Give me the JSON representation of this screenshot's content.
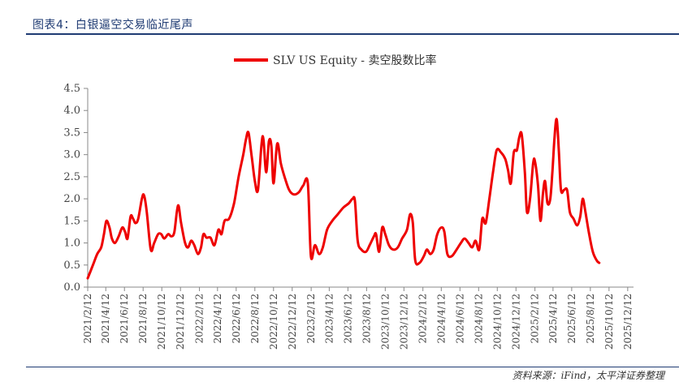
{
  "header": {
    "caption": "图表4：白银逼空交易临近尾声"
  },
  "footer": {
    "source": "资料来源：iFind，太平洋证券整理"
  },
  "chart_data": {
    "type": "line",
    "series": [
      {
        "name": "SLV US Equity - 卖空股数比率",
        "color": "#ee0000",
        "points": [
          [
            "2021-02-12",
            0.2
          ],
          [
            "2021-03-01",
            0.5
          ],
          [
            "2021-03-15",
            0.75
          ],
          [
            "2021-03-28",
            0.9
          ],
          [
            "2021-04-06",
            1.2
          ],
          [
            "2021-04-14",
            1.5
          ],
          [
            "2021-04-24",
            1.35
          ],
          [
            "2021-05-02",
            1.1
          ],
          [
            "2021-05-12",
            1.0
          ],
          [
            "2021-05-24",
            1.15
          ],
          [
            "2021-06-05",
            1.35
          ],
          [
            "2021-06-14",
            1.25
          ],
          [
            "2021-06-22",
            1.1
          ],
          [
            "2021-07-02",
            1.6
          ],
          [
            "2021-07-10",
            1.55
          ],
          [
            "2021-07-18",
            1.45
          ],
          [
            "2021-07-27",
            1.55
          ],
          [
            "2021-08-08",
            2.0
          ],
          [
            "2021-08-15",
            2.08
          ],
          [
            "2021-08-24",
            1.7
          ],
          [
            "2021-09-06",
            0.85
          ],
          [
            "2021-09-17",
            1.0
          ],
          [
            "2021-09-30",
            1.2
          ],
          [
            "2021-10-10",
            1.2
          ],
          [
            "2021-10-20",
            1.1
          ],
          [
            "2021-11-02",
            1.2
          ],
          [
            "2021-11-12",
            1.15
          ],
          [
            "2021-11-22",
            1.25
          ],
          [
            "2021-12-04",
            1.85
          ],
          [
            "2021-12-14",
            1.45
          ],
          [
            "2021-12-27",
            1.0
          ],
          [
            "2022-01-06",
            0.9
          ],
          [
            "2022-01-16",
            1.05
          ],
          [
            "2022-01-26",
            0.95
          ],
          [
            "2022-02-07",
            0.75
          ],
          [
            "2022-02-17",
            0.9
          ],
          [
            "2022-02-25",
            1.2
          ],
          [
            "2022-03-07",
            1.12
          ],
          [
            "2022-03-20",
            1.12
          ],
          [
            "2022-04-02",
            0.95
          ],
          [
            "2022-04-15",
            1.3
          ],
          [
            "2022-04-25",
            1.2
          ],
          [
            "2022-05-05",
            1.5
          ],
          [
            "2022-05-20",
            1.55
          ],
          [
            "2022-06-05",
            1.9
          ],
          [
            "2022-06-20",
            2.5
          ],
          [
            "2022-07-05",
            3.0
          ],
          [
            "2022-07-14",
            3.35
          ],
          [
            "2022-07-22",
            3.5
          ],
          [
            "2022-08-01",
            3.0
          ],
          [
            "2022-08-12",
            2.4
          ],
          [
            "2022-08-22",
            2.2
          ],
          [
            "2022-09-03",
            3.25
          ],
          [
            "2022-09-09",
            3.35
          ],
          [
            "2022-09-18",
            2.6
          ],
          [
            "2022-09-27",
            3.3
          ],
          [
            "2022-10-05",
            3.2
          ],
          [
            "2022-10-12",
            2.35
          ],
          [
            "2022-10-24",
            3.25
          ],
          [
            "2022-11-05",
            2.8
          ],
          [
            "2022-11-17",
            2.5
          ],
          [
            "2022-12-02",
            2.2
          ],
          [
            "2022-12-17",
            2.1
          ],
          [
            "2023-01-03",
            2.15
          ],
          [
            "2023-01-17",
            2.3
          ],
          [
            "2023-02-01",
            2.35
          ],
          [
            "2023-02-11",
            0.7
          ],
          [
            "2023-02-24",
            0.95
          ],
          [
            "2023-03-10",
            0.75
          ],
          [
            "2023-03-22",
            0.9
          ],
          [
            "2023-04-05",
            1.3
          ],
          [
            "2023-04-22",
            1.5
          ],
          [
            "2023-05-10",
            1.65
          ],
          [
            "2023-05-28",
            1.8
          ],
          [
            "2023-06-15",
            1.9
          ],
          [
            "2023-06-27",
            2.0
          ],
          [
            "2023-07-05",
            1.95
          ],
          [
            "2023-07-14",
            1.05
          ],
          [
            "2023-07-26",
            0.85
          ],
          [
            "2023-08-10",
            0.8
          ],
          [
            "2023-08-22",
            0.95
          ],
          [
            "2023-09-05",
            1.15
          ],
          [
            "2023-09-12",
            1.2
          ],
          [
            "2023-09-22",
            0.8
          ],
          [
            "2023-10-02",
            1.35
          ],
          [
            "2023-10-12",
            1.2
          ],
          [
            "2023-10-24",
            0.95
          ],
          [
            "2023-11-07",
            0.85
          ],
          [
            "2023-11-22",
            0.9
          ],
          [
            "2023-12-06",
            1.1
          ],
          [
            "2023-12-22",
            1.3
          ],
          [
            "2024-01-01",
            1.65
          ],
          [
            "2024-01-10",
            1.45
          ],
          [
            "2024-01-18",
            0.6
          ],
          [
            "2024-02-01",
            0.55
          ],
          [
            "2024-02-15",
            0.7
          ],
          [
            "2024-02-25",
            0.85
          ],
          [
            "2024-03-07",
            0.75
          ],
          [
            "2024-03-18",
            0.85
          ],
          [
            "2024-03-30",
            1.2
          ],
          [
            "2024-04-12",
            1.35
          ],
          [
            "2024-04-22",
            1.25
          ],
          [
            "2024-05-02",
            0.75
          ],
          [
            "2024-05-16",
            0.7
          ],
          [
            "2024-06-01",
            0.85
          ],
          [
            "2024-06-15",
            1.0
          ],
          [
            "2024-06-27",
            1.1
          ],
          [
            "2024-07-10",
            1.0
          ],
          [
            "2024-07-22",
            0.9
          ],
          [
            "2024-08-02",
            1.05
          ],
          [
            "2024-08-14",
            0.85
          ],
          [
            "2024-08-24",
            1.55
          ],
          [
            "2024-09-04",
            1.45
          ],
          [
            "2024-09-16",
            2.0
          ],
          [
            "2024-09-28",
            2.6
          ],
          [
            "2024-10-10",
            3.1
          ],
          [
            "2024-10-24",
            3.05
          ],
          [
            "2024-11-07",
            2.9
          ],
          [
            "2024-11-16",
            2.65
          ],
          [
            "2024-11-25",
            2.35
          ],
          [
            "2024-12-05",
            3.05
          ],
          [
            "2024-12-15",
            3.1
          ],
          [
            "2024-12-23",
            3.4
          ],
          [
            "2024-12-31",
            3.45
          ],
          [
            "2025-01-10",
            2.6
          ],
          [
            "2025-01-17",
            1.7
          ],
          [
            "2025-01-27",
            2.0
          ],
          [
            "2025-02-06",
            2.8
          ],
          [
            "2025-02-12",
            2.85
          ],
          [
            "2025-02-22",
            2.3
          ],
          [
            "2025-03-02",
            1.5
          ],
          [
            "2025-03-10",
            2.1
          ],
          [
            "2025-03-17",
            2.4
          ],
          [
            "2025-03-25",
            1.9
          ],
          [
            "2025-04-03",
            2.0
          ],
          [
            "2025-04-10",
            2.6
          ],
          [
            "2025-04-17",
            3.4
          ],
          [
            "2025-04-24",
            3.8
          ],
          [
            "2025-05-01",
            3.1
          ],
          [
            "2025-05-08",
            2.2
          ],
          [
            "2025-05-18",
            2.2
          ],
          [
            "2025-05-28",
            2.2
          ],
          [
            "2025-06-06",
            1.7
          ],
          [
            "2025-06-18",
            1.55
          ],
          [
            "2025-06-30",
            1.4
          ],
          [
            "2025-07-10",
            1.6
          ],
          [
            "2025-07-18",
            2.0
          ],
          [
            "2025-07-27",
            1.7
          ],
          [
            "2025-08-08",
            1.2
          ],
          [
            "2025-08-20",
            0.8
          ],
          [
            "2025-09-02",
            0.6
          ],
          [
            "2025-09-10",
            0.55
          ]
        ]
      }
    ],
    "x_axis": {
      "type": "date",
      "min": "2021-02-12",
      "max": "2025-12-31",
      "tick_labels": [
        "2021/2/12",
        "2021/4/12",
        "2021/6/12",
        "2021/8/12",
        "2021/10/12",
        "2021/12/12",
        "2022/2/12",
        "2022/4/12",
        "2022/6/12",
        "2022/8/12",
        "2022/10/12",
        "2022/12/12",
        "2023/2/12",
        "2023/4/12",
        "2023/6/12",
        "2023/8/12",
        "2023/10/12",
        "2023/12/12",
        "2024/2/12",
        "2024/4/12",
        "2024/6/12",
        "2024/8/12",
        "2024/10/12",
        "2024/12/12",
        "2025/2/12",
        "2025/4/12",
        "2025/6/12",
        "2025/8/12",
        "2025/10/12",
        "2025/12/12"
      ],
      "tick_label_rotation": "vertical"
    },
    "y_axis": {
      "min": 0.0,
      "max": 4.5,
      "tick_labels": [
        "0.0",
        "0.5",
        "1.0",
        "1.5",
        "2.0",
        "2.5",
        "3.0",
        "3.5",
        "4.0",
        "4.5"
      ]
    },
    "grid": false,
    "legend_position": "top-center"
  }
}
